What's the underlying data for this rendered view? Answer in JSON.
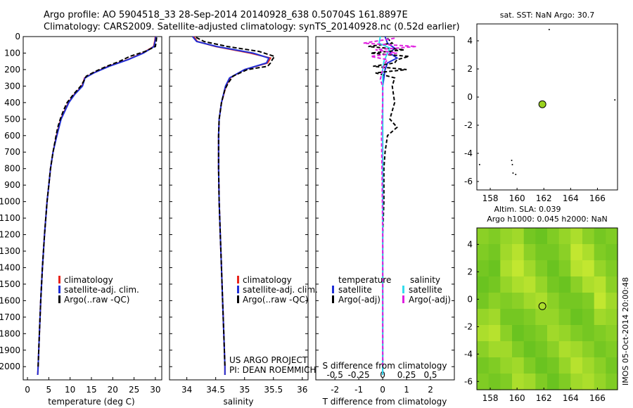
{
  "header": {
    "line1": "Argo profile: AO 5904518_33 28-Sep-2014 20140928_638 0.50704S 161.8897E",
    "line2": "Climatology: CARS2009. Satellite-adjusted climatology: synTS_20140928.nc (0.52d earlier)"
  },
  "colors": {
    "climatology": "#e8251c",
    "satellite_adj": "#1f2fd6",
    "argo": "#000000",
    "satellite_s": "#33ddee",
    "argo_adj_s": "#e020e0",
    "sst_marker": "#9ad21e",
    "map_green": "#66dd33"
  },
  "chart_data": [
    {
      "type": "line",
      "id": "temperature",
      "xlabel": "temperature (deg C)",
      "ylabel": "",
      "xlim": [
        -1,
        31.5
      ],
      "ylim": [
        2080,
        0
      ],
      "xticks": [
        0,
        5,
        10,
        15,
        20,
        25,
        30
      ],
      "yticks": [
        0,
        100,
        200,
        300,
        400,
        500,
        600,
        700,
        800,
        900,
        1000,
        1100,
        1200,
        1300,
        1400,
        1500,
        1600,
        1700,
        1800,
        1900,
        2000
      ],
      "legend": [
        "climatology",
        "satellite-adj. clim.",
        "Argo(..raw -QC)"
      ],
      "series": [
        {
          "name": "climatology",
          "depth": [
            0,
            20,
            60,
            100,
            140,
            180,
            220,
            250,
            300,
            350,
            400,
            500,
            600,
            700,
            800,
            900,
            1000,
            1200,
            1400,
            1600,
            1800,
            2000,
            2050
          ],
          "values": [
            30.0,
            29.9,
            29.6,
            27.0,
            23.5,
            19.0,
            15.5,
            13.4,
            12.8,
            11.0,
            9.6,
            7.8,
            6.8,
            6.0,
            5.4,
            5.0,
            4.6,
            4.0,
            3.5,
            3.1,
            2.8,
            2.5,
            2.4
          ]
        },
        {
          "name": "satellite-adj. clim.",
          "depth": [
            0,
            20,
            60,
            100,
            140,
            180,
            220,
            250,
            300,
            350,
            400,
            500,
            600,
            700,
            800,
            900,
            1000,
            1200,
            1400,
            1600,
            1800,
            2000,
            2050
          ],
          "values": [
            30.1,
            30.0,
            29.7,
            27.2,
            23.6,
            19.2,
            15.6,
            13.5,
            12.9,
            11.1,
            9.7,
            7.9,
            6.9,
            6.0,
            5.4,
            5.0,
            4.6,
            4.0,
            3.5,
            3.1,
            2.8,
            2.5,
            2.4
          ]
        },
        {
          "name": "Argo(..raw -QC)",
          "depth": [
            5,
            30,
            60,
            90,
            120,
            150,
            180,
            210,
            240,
            270,
            300,
            350,
            400,
            450,
            500,
            550,
            600,
            700,
            800,
            900,
            1000,
            1200,
            1400,
            1600,
            1800,
            2000
          ],
          "values": [
            30.3,
            30.2,
            30.0,
            27.6,
            24.0,
            21.6,
            18.6,
            16.0,
            13.8,
            13.2,
            12.5,
            10.8,
            9.3,
            8.4,
            7.7,
            7.1,
            6.7,
            6.0,
            5.4,
            5.0,
            4.6,
            4.0,
            3.5,
            3.1,
            2.8,
            2.5
          ]
        }
      ]
    },
    {
      "type": "line",
      "id": "salinity",
      "xlabel": "salinity",
      "xlim": [
        33.7,
        36.1
      ],
      "ylim": [
        2080,
        0
      ],
      "xticks": [
        34,
        34.5,
        35,
        35.5,
        36
      ],
      "legend": [
        "climatology",
        "satellite-adj. clim.",
        "Argo(..raw -QC)"
      ],
      "series": [
        {
          "name": "climatology",
          "depth": [
            0,
            30,
            60,
            100,
            130,
            160,
            200,
            250,
            300,
            400,
            500,
            600,
            800,
            1000,
            1200,
            1400,
            1600,
            1800,
            2000,
            2050
          ],
          "values": [
            34.12,
            34.18,
            34.5,
            35.1,
            35.45,
            35.4,
            35.0,
            34.75,
            34.68,
            34.6,
            34.56,
            34.55,
            34.55,
            34.56,
            34.58,
            34.6,
            34.62,
            34.64,
            34.66,
            34.66
          ]
        },
        {
          "name": "satellite-adj. clim.",
          "depth": [
            0,
            30,
            60,
            100,
            130,
            160,
            200,
            250,
            300,
            400,
            500,
            600,
            800,
            1000,
            1200,
            1400,
            1600,
            1800,
            2000,
            2050
          ],
          "values": [
            34.1,
            34.17,
            34.52,
            35.15,
            35.42,
            35.38,
            35.0,
            34.74,
            34.67,
            34.6,
            34.56,
            34.55,
            34.55,
            34.56,
            34.58,
            34.6,
            34.62,
            34.64,
            34.66,
            34.66
          ]
        },
        {
          "name": "Argo(..raw -QC)",
          "depth": [
            5,
            30,
            60,
            90,
            120,
            140,
            160,
            180,
            200,
            240,
            280,
            320,
            400,
            500,
            600,
            800,
            1000,
            1200,
            1400,
            1600,
            1800,
            2000
          ],
          "values": [
            34.16,
            34.3,
            34.7,
            35.25,
            35.52,
            35.48,
            35.45,
            35.4,
            35.05,
            34.8,
            34.72,
            34.66,
            34.6,
            34.56,
            34.55,
            34.55,
            34.56,
            34.58,
            34.6,
            34.62,
            34.64,
            34.66
          ]
        }
      ],
      "annotation": [
        "US ARGO PROJECT",
        "PI: DEAN ROEMMICH"
      ]
    },
    {
      "type": "line",
      "id": "difference",
      "xlabel": "T difference from climatology",
      "top_axis_label": "S difference from climatology",
      "xlim": [
        -2.8,
        3.0
      ],
      "ylim": [
        2080,
        0
      ],
      "xticks": [
        -2,
        -1,
        0,
        1,
        2
      ],
      "xticks_top": [
        "-0.5",
        "-0.25",
        "0",
        "0.25",
        "0.5"
      ],
      "xticks_top_positions": [
        -2,
        -1,
        0,
        1,
        2
      ],
      "legend": [
        [
          "temperature",
          "salinity"
        ],
        [
          "satellite",
          "satellite"
        ],
        [
          "Argo(-adj)",
          "Argo(-adj)"
        ]
      ],
      "series": [
        {
          "name": "T satellite",
          "depth": [
            0,
            40,
            70,
            100,
            130,
            160,
            200,
            250,
            300,
            500,
            800,
            1200,
            1600,
            2050
          ],
          "values": [
            0.1,
            0.2,
            0.5,
            0.3,
            0.6,
            0.2,
            0.1,
            0.05,
            0.0,
            0.0,
            0.0,
            0.0,
            0.0,
            0.0
          ]
        },
        {
          "name": "T Argo(-adj)",
          "depth": [
            10,
            40,
            60,
            80,
            100,
            120,
            140,
            160,
            180,
            200,
            220,
            250,
            300,
            400,
            500,
            550,
            600,
            700,
            800,
            1000,
            1200,
            1500,
            1800,
            2000
          ],
          "values": [
            0.2,
            0.4,
            -0.6,
            0.9,
            -0.5,
            1.1,
            0.6,
            0.5,
            -0.4,
            1.0,
            -0.3,
            0.5,
            0.4,
            0.5,
            0.3,
            0.6,
            0.2,
            0.1,
            0.05,
            0.05,
            0.0,
            0.0,
            0.0,
            0.0
          ]
        },
        {
          "name": "S satellite",
          "depth": [
            0,
            40,
            70,
            100,
            150,
            200,
            300,
            500,
            800,
            1200,
            1600,
            2050
          ],
          "values": [
            -0.1,
            -0.15,
            0.3,
            0.2,
            0.05,
            0.0,
            0.0,
            0.0,
            0.0,
            0.0,
            0.0,
            0.0
          ]
        },
        {
          "name": "S Argo(-adj)",
          "depth": [
            10,
            40,
            60,
            80,
            100,
            120,
            140,
            160,
            200,
            260,
            300,
            400,
            600,
            900,
            1200,
            1500,
            1800,
            2000
          ],
          "values": [
            0.5,
            -0.8,
            1.4,
            -0.3,
            0.6,
            -0.5,
            0.2,
            0.1,
            0.0,
            -0.1,
            0.0,
            0.0,
            -0.05,
            -0.02,
            0.0,
            0.0,
            0.0,
            0.0
          ]
        }
      ]
    },
    {
      "type": "scatter",
      "id": "sst-map",
      "title": "sat. SST: NaN Argo: 30.7",
      "xlim": [
        157,
        167.5
      ],
      "ylim": [
        -6.6,
        5.2
      ],
      "xticks": [
        158,
        160,
        162,
        164,
        166
      ],
      "yticks": [
        -6,
        -4,
        -2,
        0,
        2,
        4
      ],
      "marker": {
        "lon": 161.89,
        "lat": -0.51
      },
      "dots": [
        {
          "lon": 162.4,
          "lat": 4.8
        },
        {
          "lon": 159.6,
          "lat": -4.5
        },
        {
          "lon": 159.65,
          "lat": -4.8
        },
        {
          "lon": 159.7,
          "lat": -5.4
        },
        {
          "lon": 159.9,
          "lat": -5.5
        },
        {
          "lon": 157.2,
          "lat": -4.8
        },
        {
          "lon": 167.3,
          "lat": -0.2
        }
      ]
    },
    {
      "type": "heatmap",
      "id": "sla-map",
      "title1": "Altim. SLA: 0.039",
      "title2": "Argo h1000: 0.045 h2000: NaN",
      "xlim": [
        157,
        167.5
      ],
      "ylim": [
        -6.6,
        5.2
      ],
      "xticks": [
        158,
        160,
        162,
        164,
        166
      ],
      "yticks": [
        -6,
        -4,
        -2,
        0,
        2,
        4
      ],
      "marker": {
        "lon": 161.89,
        "lat": -0.51
      },
      "grid_values": [
        [
          0.4,
          0.3,
          0.5,
          0.6,
          0.2,
          0.1,
          0.3,
          0.5,
          0.7,
          0.4,
          0.2,
          0.3
        ],
        [
          0.3,
          0.2,
          0.6,
          0.8,
          0.4,
          0.2,
          0.2,
          0.4,
          0.9,
          0.7,
          0.3,
          0.2
        ],
        [
          0.2,
          0.1,
          0.7,
          0.9,
          0.6,
          0.3,
          0.1,
          0.3,
          0.8,
          0.9,
          0.5,
          0.3
        ],
        [
          0.1,
          0.2,
          0.5,
          0.7,
          0.8,
          0.5,
          0.2,
          0.1,
          0.4,
          0.7,
          0.8,
          0.4
        ],
        [
          0.2,
          0.4,
          0.3,
          0.4,
          0.6,
          0.7,
          0.4,
          0.2,
          0.2,
          0.3,
          0.9,
          0.6
        ],
        [
          0.5,
          0.6,
          0.2,
          0.2,
          0.3,
          0.5,
          0.5,
          0.3,
          0.1,
          0.2,
          0.6,
          0.5
        ],
        [
          0.7,
          0.8,
          0.4,
          0.1,
          0.2,
          0.3,
          0.6,
          0.5,
          0.3,
          0.2,
          0.3,
          0.4
        ],
        [
          0.4,
          0.6,
          0.6,
          0.3,
          0.1,
          0.2,
          0.4,
          0.7,
          0.6,
          0.4,
          0.2,
          0.3
        ],
        [
          0.2,
          0.3,
          0.5,
          0.6,
          0.3,
          0.1,
          0.2,
          0.5,
          0.8,
          0.6,
          0.4,
          0.2
        ],
        [
          0.3,
          0.2,
          0.3,
          0.7,
          0.6,
          0.3,
          0.1,
          0.3,
          0.6,
          0.7,
          0.5,
          0.3
        ]
      ],
      "side_label": "IMOS 05-Oct-2014 20:00:48"
    }
  ]
}
